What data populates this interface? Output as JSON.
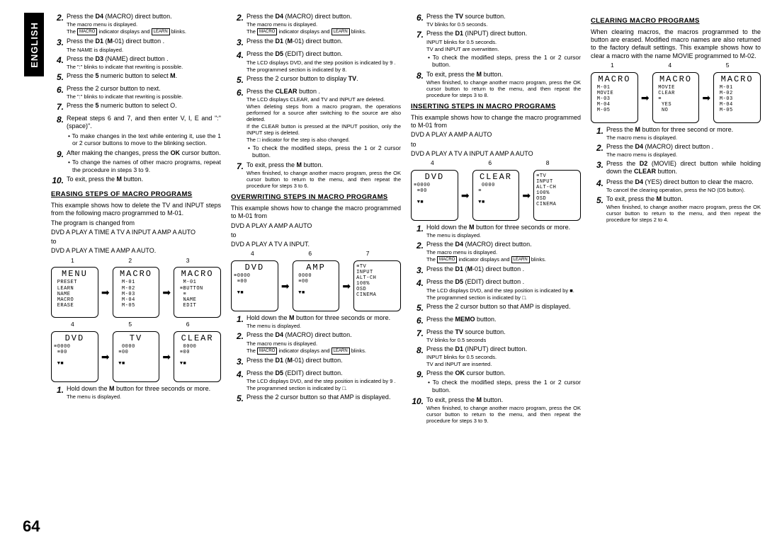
{
  "language_tab": "ENGLISH",
  "page_number": "64",
  "col1": {
    "steps_a": [
      {
        "n": "2.",
        "main": "Press the D4 (MACRO) direct button.",
        "notes": [
          "The macro menu is displayed.",
          "The [MACRO] indicator displays and [LEARN] blinks."
        ]
      },
      {
        "n": "3.",
        "main": "Press the D1 (M-01) direct button .",
        "notes": [
          "The NAME is displayed."
        ]
      },
      {
        "n": "4.",
        "main": "Press the D3 (NAME) direct button .",
        "notes": [
          "The \":\" blinks to indicate that rewriting is possible."
        ]
      },
      {
        "n": "5.",
        "main": "Press the 5 numeric button to select M."
      },
      {
        "n": "6.",
        "main": "Press the 2 cursor button to next.",
        "notes": [
          "The \":\" blinks to indicate that rewriting is possible."
        ]
      },
      {
        "n": "7.",
        "main": "Press the 5 numeric button to select O."
      },
      {
        "n": "8.",
        "main": "Repeat steps 6 and 7, and then enter V, I, E and \":\" (space)\".",
        "bullets": [
          "To make changes in the text while entering it, use the 1 or 2 cursor buttons to move to the blinking section."
        ]
      },
      {
        "n": "9.",
        "main": "After making the changes, press the OK cursor button.",
        "bullets": [
          "To change the names of other macro programs, repeat the procedure in steps 3 to 9."
        ]
      },
      {
        "n": "10.",
        "main": "To exit, press the M button."
      }
    ],
    "h1": "ERASING STEPS OF MACRO PROGRAMS",
    "p1": "This example shows how to delete the TV and INPUT steps from the following macro programmed to M-01.",
    "p2": "The program is changed from",
    "p3": "DVD A PLAY A TIME A TV A INPUT A AMP A AUTO",
    "p4": "to",
    "p5": "DVD A PLAY A TIME A AMP A AUTO.",
    "lcd_labels_top": [
      "1",
      "2",
      "3"
    ],
    "lcd_top": [
      {
        "title": "MENU",
        "lines": " PRESET\n LEARN\n NAME\n MACRO\n ERASE"
      },
      {
        "title": "MACRO",
        "lines": "  M-01\n  M-02\n  M-03\n  M-04\n  M-05"
      },
      {
        "title": "MACRO",
        "lines": "  M-01\n ≡BUTTON\n  ≡\n  NAME\n  EDIT"
      }
    ],
    "lcd_labels_bot": [
      "4",
      "5",
      "6"
    ],
    "lcd_bot": [
      {
        "title": "DVD",
        "lines": "≡0000\n ≡00\n\n ▼■"
      },
      {
        "title": "TV",
        "lines": "  0000\n ≡00\n\n ▼■"
      },
      {
        "title": "CLEAR",
        "lines": "  0000\n ≡00\n\n ▼■"
      }
    ],
    "steps_b": [
      {
        "n": "1.",
        "main": "Hold down the M button for three seconds or more.",
        "notes": [
          "The menu is displayed."
        ]
      }
    ]
  },
  "col2": {
    "steps_a": [
      {
        "n": "2.",
        "main": "Press the D4 (MACRO) direct button.",
        "notes": [
          "The macro menu is displayed.",
          "The [MACRO] indicator displays and [LEARN] blinks."
        ]
      },
      {
        "n": "3.",
        "main": "Press the D1 (M-01) direct button."
      },
      {
        "n": "4.",
        "main": "Press the D5 (EDIT) direct button.",
        "notes": [
          "The LCD displays DVD, and the step position is indicated by 9 .",
          "The programmed section is indicated by 8."
        ]
      },
      {
        "n": "5.",
        "main": "Press the 2 cursor button to display TV."
      },
      {
        "n": "6.",
        "main": "Press the CLEAR button .",
        "notes": [
          "The LCD displays CLEAR, and TV and INPUT are deleted.",
          "When deleting steps from a macro program, the operations performed for a source after switching to the source are also deleted.",
          "If the CLEAR button is pressed at the INPUT position, only the INPUT step is deleted.",
          "The □ indicator for the step is also changed."
        ],
        "bullets": [
          "To check the modified steps, press the 1 or 2 cursor button."
        ]
      },
      {
        "n": "7.",
        "main": "To exit, press the M button.",
        "notes": [
          "When finished, to change another macro program, press the OK cursor button to return to the menu, and then repeat the procedure for steps 3 to 6."
        ]
      }
    ],
    "h1": "OVERWRITING STEPS IN MACRO PROGRAMS",
    "p1": "This example shows how to change the macro programmed to M-01 from",
    "p2": "DVD  A  PLAY  A  AMP  A  AUTO",
    "p3": "to",
    "p4": "DVD  A  PLAY  A  TV  A  INPUT.",
    "lcd_labels": [
      "4",
      "6",
      "7"
    ],
    "lcd": [
      {
        "title": "DVD",
        "lines": "≡0000\n ≡00\n\n ▼■"
      },
      {
        "title": "AMP",
        "lines": " 0000\n ≡00\n\n ▼■"
      },
      {
        "title": "",
        "lines": "≡TV\nINPUT\nALT-CH\n100%\nOSD\nCINEMA"
      }
    ],
    "steps_b": [
      {
        "n": "1.",
        "main": "Hold down the M button for three seconds or more.",
        "notes": [
          "The menu is displayed."
        ]
      },
      {
        "n": "2.",
        "main": "Press the D4 (MACRO) direct button.",
        "notes": [
          "The macro menu is displayed.",
          "The [MACRO] indicator displays and [LEARN] blinks."
        ]
      },
      {
        "n": "3.",
        "main": "Press the D1 (M-01) direct button."
      },
      {
        "n": "4.",
        "main": "Press the D5 (EDIT) direct button.",
        "notes": [
          "The LCD displays DVD, and the step position is indicated by 9 .",
          "The programmed section is indicated by □."
        ]
      },
      {
        "n": "5.",
        "main": "Press the 2 cursor button so that AMP is displayed."
      }
    ]
  },
  "col3": {
    "steps_a": [
      {
        "n": "6.",
        "main": "Press the TV source button.",
        "notes": [
          "TV blinks for 0.5 seconds."
        ]
      },
      {
        "n": "7.",
        "main": "Press the D1 (INPUT) direct button.",
        "notes": [
          "INPUT blinks for 0.5 seconds.",
          "TV and INPUT are overwritten."
        ],
        "bullets": [
          "To check the modified steps, press the 1 or 2 cursor button."
        ]
      },
      {
        "n": "8.",
        "main": "To exit, press the M button.",
        "notes": [
          "When finished, to change another macro program, press the OK cursor button to return to the menu, and then repeat the procedure for steps 3 to 8."
        ]
      }
    ],
    "h1": "INSERTING STEPS IN MACRO PROGRAMS",
    "p1": "This example shows how to change the macro programmed to M-01 from",
    "p2": "DVD  A  PLAY  A  AMP  A  AUTO",
    "p3": "to",
    "p4": "DVD  A  PLAY  A  TV  A  INPUT  A  AMP  A  AUTO",
    "lcd_labels": [
      "4",
      "6",
      "8"
    ],
    "lcd": [
      {
        "title": "DVD",
        "lines": "≡0000\n ≡00\n\n ▼■"
      },
      {
        "title": "CLEAR",
        "lines": "  0000\n ≡\n\n ▼■"
      },
      {
        "title": "",
        "lines": "≡TV\nINPUT\nALT-CH\n100%\nOSD\nCINEMA"
      }
    ],
    "steps_b": [
      {
        "n": "1.",
        "main": "Hold down the M button for three seconds or more.",
        "notes": [
          "The menu is displayed."
        ]
      },
      {
        "n": "2.",
        "main": "Press the D4 (MACRO) direct button.",
        "notes": [
          "The macro menu is displayed.",
          "The [MACRO] indicator displays and [LEARN] blinks."
        ]
      },
      {
        "n": "3.",
        "main": "Press the D1 (M-01) direct button ."
      },
      {
        "n": "4.",
        "main": "Press the D5 (EDIT) direct button .",
        "notes": [
          "The LCD displays DVD, and the step position is indicated by ■.",
          "The programmed section is indicated by □."
        ]
      },
      {
        "n": "5.",
        "main": "Press the 2 cursor button so that AMP is displayed."
      },
      {
        "n": "6.",
        "main": "Press the MEMO button."
      },
      {
        "n": "7.",
        "main": "Press the TV source button.",
        "notes": [
          "TV blinks for 0.5 seconds"
        ]
      },
      {
        "n": "8.",
        "main": "Press the D1 (INPUT) direct button.",
        "notes": [
          "INPUT blinks for 0.5 seconds.",
          "TV and INPUT are inserted."
        ]
      },
      {
        "n": "9.",
        "main": "Press the OK cursor button.",
        "bullets": [
          "To check the modified steps, press the 1 or 2 cursor button."
        ]
      },
      {
        "n": "10.",
        "main": "To exit, press the M button.",
        "notes": [
          "When finished, to change another macro program, press the OK cursor button to return to the menu, and then repeat the procedure for steps 3 to 9."
        ]
      }
    ]
  },
  "col4": {
    "h1": "CLEARING MACRO PROGRAMS",
    "p1": "When clearing macros, the macros programmed to the button are erased. Modified macro names are also returned to the factory default settings. This example shows how to clear a macro with the name MOVIE programmed to M-02.",
    "lcd_labels": [
      "1",
      "4",
      "5"
    ],
    "lcd": [
      {
        "title": "MACRO",
        "lines": " M-01\n MOVIE\n M-03\n M-04\n M-05"
      },
      {
        "title": "MACRO",
        "lines": " MOVIE\n CLEAR\n ≡\n  YES\n  NO"
      },
      {
        "title": "MACRO",
        "lines": " M-01\n M-02\n M-03\n M-04\n M-05"
      }
    ],
    "steps": [
      {
        "n": "1.",
        "main": "Press the M button for three second or more.",
        "notes": [
          "The macro menu is displayed."
        ]
      },
      {
        "n": "2.",
        "main": "Press the D4 (MACRO) direct button .",
        "notes": [
          "The macro menu is displayed."
        ]
      },
      {
        "n": "3.",
        "main": "Press the D2 (MOVIE) direct button while holding down the CLEAR button."
      },
      {
        "n": "4.",
        "main": "Press the D4 (YES) direct button to clear the macro.",
        "notes": [
          "To cancel the clearing operation, press the NO (D5 button)."
        ]
      },
      {
        "n": "5.",
        "main": "To exit, press the M button.",
        "notes": [
          "When finished, to change another macro program, press the OK cursor button to return to the menu, and then repeat the procedure for steps 2 to 4."
        ]
      }
    ]
  }
}
